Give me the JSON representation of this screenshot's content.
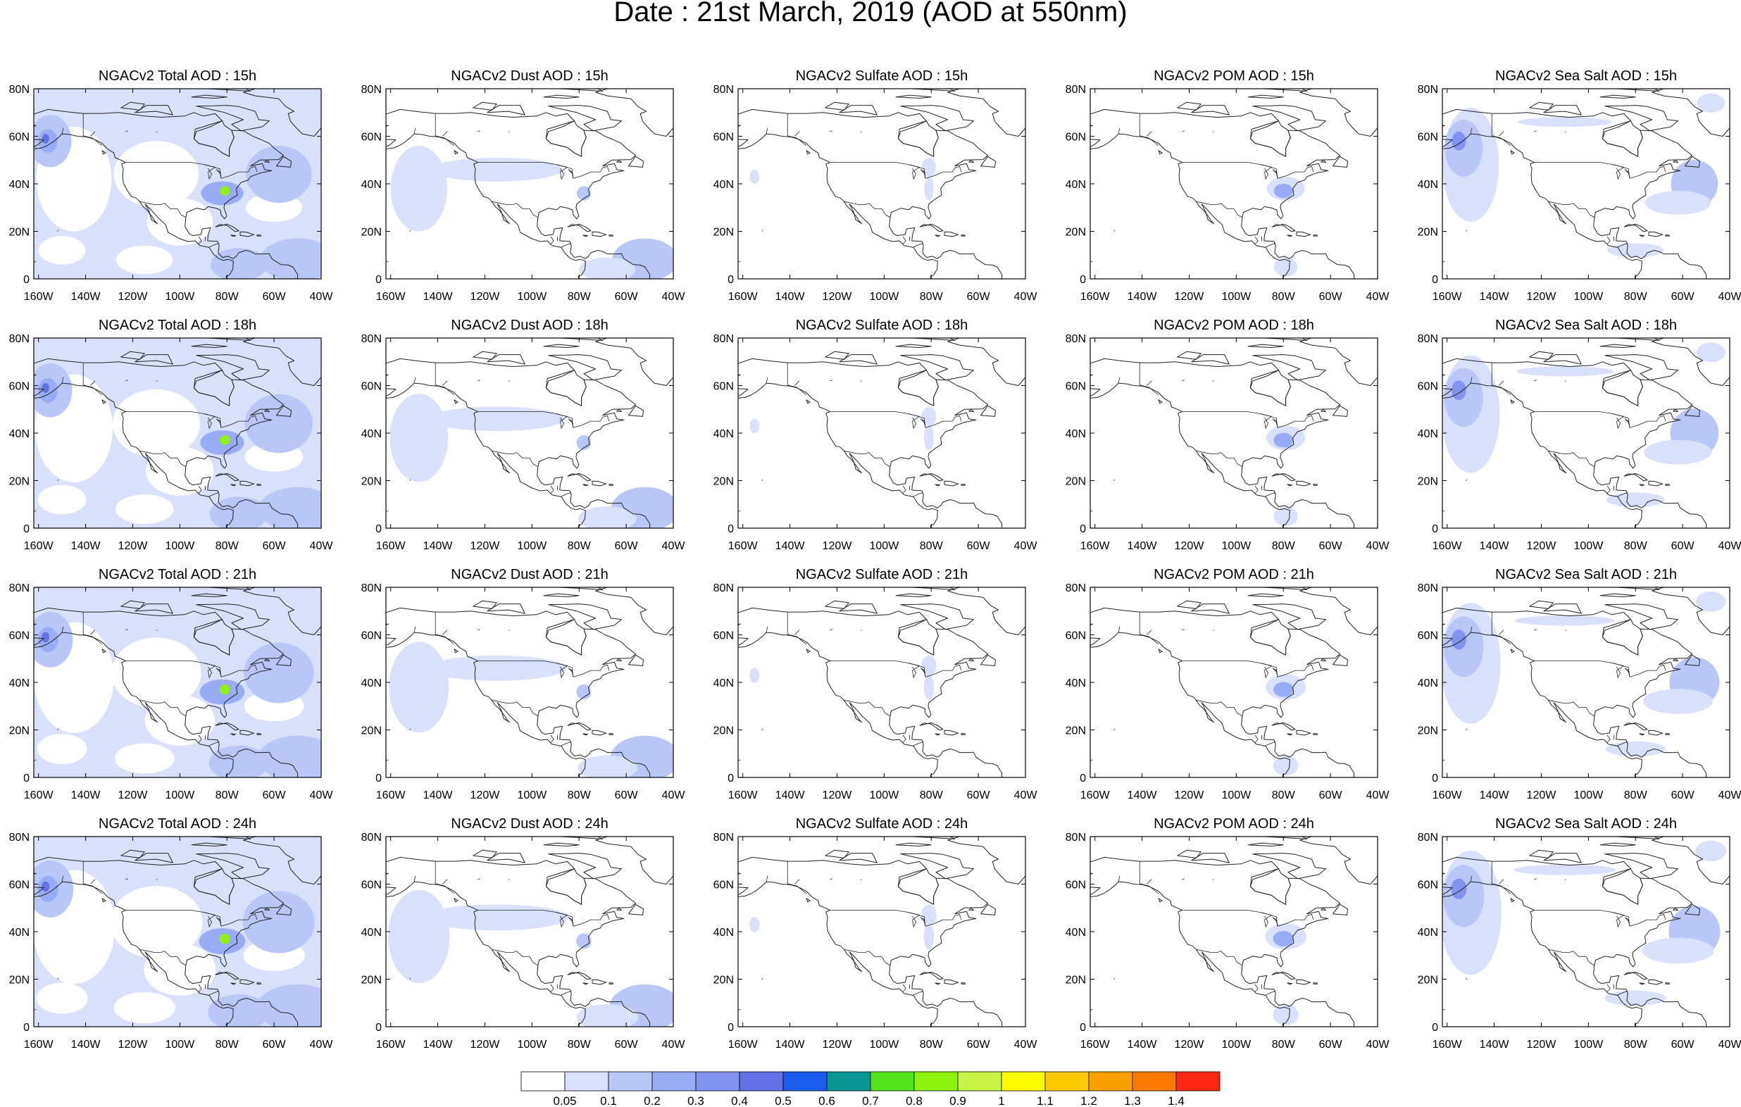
{
  "title": "Date : 21st March, 2019 (AOD at 550nm)",
  "panel_titles": [
    [
      "NGACv2 Total AOD : 15h",
      "NGACv2 Dust AOD : 15h",
      "NGACv2 Sulfate AOD : 15h",
      "NGACv2 POM AOD : 15h",
      "NGACv2 Sea Salt AOD : 15h"
    ],
    [
      "NGACv2 Total AOD : 18h",
      "NGACv2 Dust AOD : 18h",
      "NGACv2 Sulfate AOD : 18h",
      "NGACv2 POM AOD : 18h",
      "NGACv2 Sea Salt AOD : 18h"
    ],
    [
      "NGACv2 Total AOD : 21h",
      "NGACv2 Dust AOD : 21h",
      "NGACv2 Sulfate AOD : 21h",
      "NGACv2 POM AOD : 21h",
      "NGACv2 Sea Salt AOD : 21h"
    ],
    [
      "NGACv2 Total AOD : 24h",
      "NGACv2 Dust AOD : 24h",
      "NGACv2 Sulfate AOD : 24h",
      "NGACv2 POM AOD : 24h",
      "NGACv2 Sea Salt  AOD : 24h"
    ]
  ],
  "y_ticks": [
    "0",
    "20N",
    "40N",
    "60N",
    "80N"
  ],
  "x_ticks": [
    "160W",
    "140W",
    "120W",
    "100W",
    "80W",
    "60W",
    "40W"
  ],
  "colorbar": {
    "labels": [
      "0.05",
      "0.1",
      "0.2",
      "0.3",
      "0.4",
      "0.5",
      "0.6",
      "0.7",
      "0.8",
      "0.9",
      "1",
      "1.1",
      "1.2",
      "1.3",
      "1.4"
    ],
    "colors": [
      "#ffffff",
      "#d8e0fb",
      "#b8c6f8",
      "#98acf5",
      "#8294f0",
      "#6670e6",
      "#1a5cf0",
      "#0a9494",
      "#52e61a",
      "#8ef20f",
      "#c8f545",
      "#fcfc00",
      "#fcc800",
      "#fca000",
      "#fc7a00",
      "#fc2814"
    ]
  },
  "columns": [
    {
      "panel": "Total",
      "features": [
        {
          "shape": "rect",
          "lon": [
            -162,
            -40
          ],
          "lat": [
            0,
            80
          ],
          "level": 1
        },
        {
          "shape": "ellipse",
          "lon": -145,
          "lat": 42,
          "rlon": 16,
          "rlat": 22,
          "level": 0
        },
        {
          "shape": "ellipse",
          "lon": -110,
          "lat": 44,
          "rlon": 18,
          "rlat": 14,
          "level": 0
        },
        {
          "shape": "ellipse",
          "lon": -100,
          "lat": 24,
          "rlon": 14,
          "rlat": 10,
          "level": 0
        },
        {
          "shape": "ellipse",
          "lon": -150,
          "lat": 12,
          "rlon": 10,
          "rlat": 6,
          "level": 0
        },
        {
          "shape": "ellipse",
          "lon": -115,
          "lat": 8,
          "rlon": 12,
          "rlat": 6,
          "level": 0
        },
        {
          "shape": "ellipse",
          "lon": -60,
          "lat": 30,
          "rlon": 12,
          "rlat": 6,
          "level": 0
        },
        {
          "shape": "ellipse",
          "lon": -155,
          "lat": 58,
          "rlon": 9,
          "rlat": 11,
          "level": 2
        },
        {
          "shape": "ellipse",
          "lon": -156,
          "lat": 58,
          "rlon": 4,
          "rlat": 5,
          "level": 3
        },
        {
          "shape": "ellipse",
          "lon": -157,
          "lat": 59,
          "rlon": 1.5,
          "rlat": 2,
          "level": 5
        },
        {
          "shape": "ellipse",
          "lon": -58,
          "lat": 44,
          "rlon": 14,
          "rlat": 12,
          "level": 2
        },
        {
          "shape": "ellipse",
          "lon": -50,
          "lat": 8,
          "rlon": 16,
          "rlat": 9,
          "level": 2
        },
        {
          "shape": "ellipse",
          "lon": -75,
          "lat": 6,
          "rlon": 12,
          "rlat": 7,
          "level": 2
        },
        {
          "shape": "ellipse",
          "lon": -82,
          "lat": 36,
          "rlon": 9,
          "rlat": 5,
          "level": 3
        },
        {
          "shape": "ellipse",
          "lon": -81,
          "lat": 37,
          "rlon": 2,
          "rlat": 2,
          "level": 9
        }
      ]
    },
    {
      "panel": "Dust",
      "features": [
        {
          "shape": "ellipse",
          "lon": -148,
          "lat": 38,
          "rlon": 12,
          "rlat": 18,
          "level": 1
        },
        {
          "shape": "ellipse",
          "lon": -115,
          "lat": 46,
          "rlon": 28,
          "rlat": 5,
          "level": 1
        },
        {
          "shape": "ellipse",
          "lon": -52,
          "lat": 8,
          "rlon": 14,
          "rlat": 9,
          "level": 2
        },
        {
          "shape": "ellipse",
          "lon": -68,
          "lat": 4,
          "rlon": 12,
          "rlat": 5,
          "level": 1
        },
        {
          "shape": "ellipse",
          "lon": -78,
          "lat": 36,
          "rlon": 3,
          "rlat": 3,
          "level": 2
        }
      ]
    },
    {
      "panel": "Sulfate",
      "features": [
        {
          "shape": "ellipse",
          "lon": -81,
          "lat": 47,
          "rlon": 3,
          "rlat": 4,
          "level": 1
        },
        {
          "shape": "ellipse",
          "lon": -81,
          "lat": 38,
          "rlon": 2,
          "rlat": 5,
          "level": 1
        },
        {
          "shape": "ellipse",
          "lon": -155,
          "lat": 43,
          "rlon": 2,
          "rlat": 3,
          "level": 1
        }
      ]
    },
    {
      "panel": "POM",
      "features": [
        {
          "shape": "ellipse",
          "lon": -79,
          "lat": 38,
          "rlon": 8,
          "rlat": 5,
          "level": 1
        },
        {
          "shape": "ellipse",
          "lon": -80,
          "lat": 37,
          "rlon": 4,
          "rlat": 3,
          "level": 3
        },
        {
          "shape": "ellipse",
          "lon": -79,
          "lat": 5,
          "rlon": 5,
          "rlat": 4,
          "level": 1
        }
      ]
    },
    {
      "panel": "Sea Salt",
      "features": [
        {
          "shape": "ellipse",
          "lon": -150,
          "lat": 48,
          "rlon": 12,
          "rlat": 24,
          "level": 1
        },
        {
          "shape": "ellipse",
          "lon": -153,
          "lat": 55,
          "rlon": 8,
          "rlat": 12,
          "level": 2
        },
        {
          "shape": "ellipse",
          "lon": -155,
          "lat": 58,
          "rlon": 3,
          "rlat": 4,
          "level": 4
        },
        {
          "shape": "ellipse",
          "lon": -55,
          "lat": 40,
          "rlon": 10,
          "rlat": 10,
          "level": 2
        },
        {
          "shape": "ellipse",
          "lon": -62,
          "lat": 32,
          "rlon": 14,
          "rlat": 5,
          "level": 1
        },
        {
          "shape": "ellipse",
          "lon": -48,
          "lat": 74,
          "rlon": 6,
          "rlat": 4,
          "level": 1
        },
        {
          "shape": "ellipse",
          "lon": -110,
          "lat": 66,
          "rlon": 20,
          "rlat": 2,
          "level": 1
        },
        {
          "shape": "ellipse",
          "lon": -80,
          "lat": 12,
          "rlon": 12,
          "rlat": 3,
          "level": 1
        }
      ]
    }
  ]
}
